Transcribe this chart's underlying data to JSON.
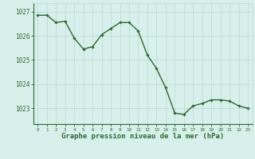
{
  "x": [
    0,
    1,
    2,
    3,
    4,
    5,
    6,
    7,
    8,
    9,
    10,
    11,
    12,
    13,
    14,
    15,
    16,
    17,
    18,
    19,
    20,
    21,
    22,
    23
  ],
  "y": [
    1026.85,
    1026.85,
    1026.55,
    1026.6,
    1025.9,
    1025.45,
    1025.55,
    1026.05,
    1026.3,
    1026.55,
    1026.55,
    1026.2,
    1025.2,
    1024.65,
    1023.85,
    1022.8,
    1022.75,
    1023.1,
    1023.2,
    1023.35,
    1023.35,
    1023.3,
    1023.1,
    1023.0
  ],
  "line_color": "#2d6a2d",
  "marker": "D",
  "marker_size": 1.8,
  "linewidth": 1.0,
  "bg_color": "#d8f0ec",
  "grid_color": "#b8d8d0",
  "tick_color": "#2d6a2d",
  "label_color": "#2d6a2d",
  "xlabel": "Graphe pression niveau de la mer (hPa)",
  "xlabel_fontsize": 6.5,
  "ytick_labels": [
    "1023",
    "1024",
    "1025",
    "1026",
    "1027"
  ],
  "ytick_values": [
    1023,
    1024,
    1025,
    1026,
    1027
  ],
  "ylim": [
    1022.35,
    1027.35
  ],
  "xlim": [
    -0.5,
    23.5
  ],
  "xtick_values": [
    0,
    1,
    2,
    3,
    4,
    5,
    6,
    7,
    8,
    9,
    10,
    11,
    12,
    13,
    14,
    15,
    16,
    17,
    18,
    19,
    20,
    21,
    22,
    23
  ]
}
